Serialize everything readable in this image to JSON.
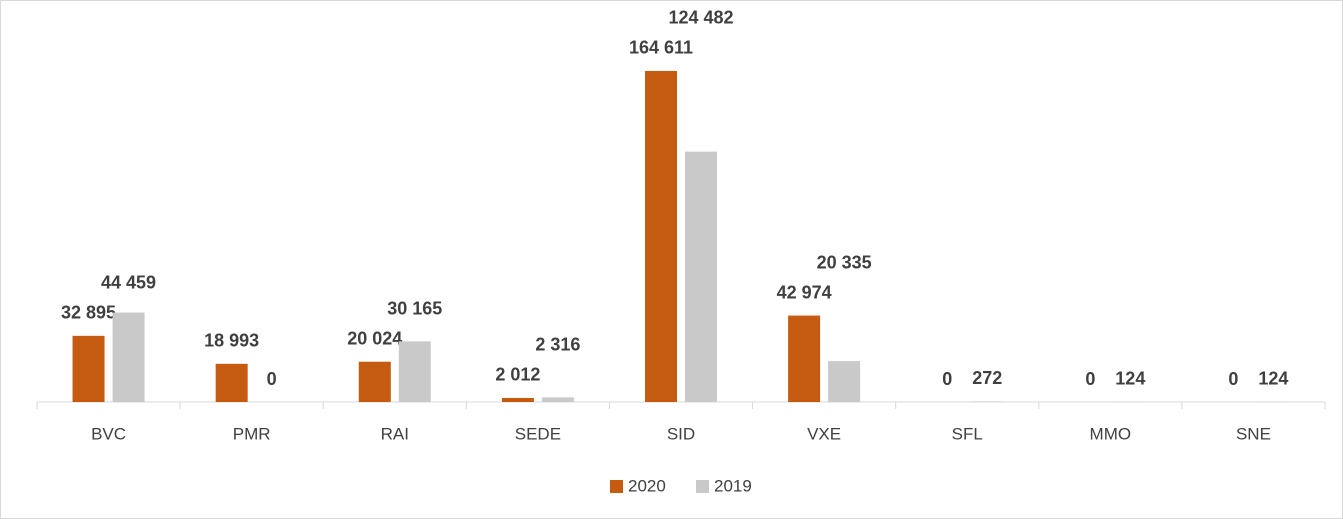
{
  "chart_data": {
    "type": "bar",
    "categories": [
      "BVC",
      "PMR",
      "RAI",
      "SEDE",
      "SID",
      "VXE",
      "SFL",
      "MMO",
      "SNE"
    ],
    "series": [
      {
        "name": "2020",
        "color": "#c55a11",
        "values": [
          32895,
          18993,
          20024,
          2012,
          164611,
          42974,
          0,
          0,
          0
        ],
        "value_labels": [
          "32 895",
          "18 993",
          "20 024",
          "2 012",
          "164 611",
          "42 974",
          "0",
          "0",
          "0"
        ]
      },
      {
        "name": "2019",
        "color": "#c9c9c9",
        "values": [
          44459,
          0,
          30165,
          2316,
          124482,
          20335,
          272,
          124,
          124
        ],
        "value_labels": [
          "44 459",
          "0",
          "30 165",
          "2 316",
          "124 482",
          "20 335",
          "272",
          "124",
          "124"
        ]
      }
    ],
    "ylim": [
      0,
      180000
    ],
    "legend": "bottom"
  }
}
